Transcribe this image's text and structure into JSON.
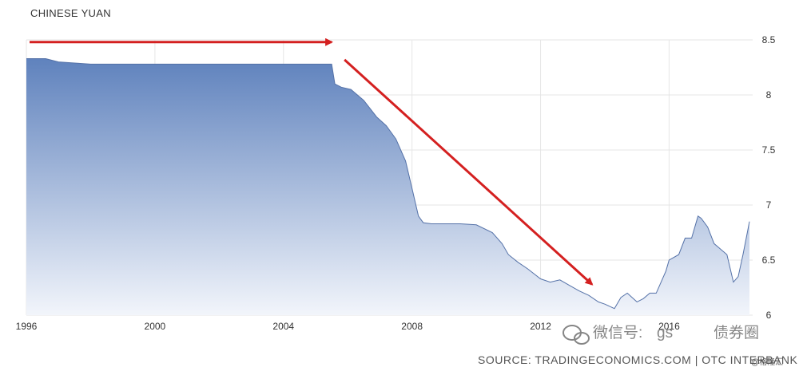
{
  "chart_data": {
    "type": "area",
    "title": "CHINESE YUAN",
    "xlabel": "",
    "ylabel": "",
    "xlim": [
      1996,
      2018.6
    ],
    "ylim": [
      6.0,
      8.5
    ],
    "x_ticks": [
      "1996",
      "2000",
      "2004",
      "2008",
      "2012",
      "2016"
    ],
    "y_ticks": [
      "8.5",
      "8",
      "7.5",
      "7",
      "6.5",
      "6"
    ],
    "grid": true,
    "legend": "none",
    "colors": {
      "fill_top": "#5f82bd",
      "fill_bottom": "#f2f5fb",
      "line": "#5572a8",
      "arrow": "#d42020"
    },
    "series": [
      {
        "x": [
          1996.0,
          1996.6,
          1997.0,
          1998.0,
          2000.0,
          2002.0,
          2004.0,
          2005.5,
          2005.6,
          2005.8,
          2006.1,
          2006.5,
          2006.9,
          2007.2,
          2007.5,
          2007.8,
          2008.0,
          2008.2,
          2008.35,
          2008.6,
          2009.0,
          2009.5,
          2010.0,
          2010.5,
          2010.8,
          2011.0,
          2011.3,
          2011.6,
          2012.0,
          2012.3,
          2012.6,
          2012.9,
          2013.2,
          2013.5,
          2013.8,
          2014.0,
          2014.3,
          2014.5,
          2014.7,
          2015.0,
          2015.2,
          2015.4,
          2015.6,
          2015.9,
          2016.0,
          2016.3,
          2016.5,
          2016.7,
          2016.9,
          2017.0,
          2017.2,
          2017.4,
          2017.6,
          2017.8,
          2018.0,
          2018.15,
          2018.3,
          2018.5
        ],
        "y": [
          8.33,
          8.33,
          8.3,
          8.28,
          8.28,
          8.28,
          8.28,
          8.28,
          8.1,
          8.07,
          8.05,
          7.95,
          7.8,
          7.72,
          7.6,
          7.4,
          7.15,
          6.9,
          6.84,
          6.83,
          6.83,
          6.83,
          6.82,
          6.75,
          6.65,
          6.55,
          6.48,
          6.42,
          6.33,
          6.3,
          6.32,
          6.27,
          6.22,
          6.18,
          6.12,
          6.1,
          6.06,
          6.16,
          6.2,
          6.12,
          6.15,
          6.2,
          6.2,
          6.4,
          6.5,
          6.55,
          6.7,
          6.7,
          6.9,
          6.88,
          6.8,
          6.65,
          6.6,
          6.55,
          6.3,
          6.35,
          6.55,
          6.85
        ]
      }
    ],
    "annotations": [
      {
        "type": "arrow",
        "from": [
          1996.1,
          8.48
        ],
        "to": [
          2005.5,
          8.48
        ]
      },
      {
        "type": "arrow",
        "from": [
          2005.9,
          8.32
        ],
        "to": [
          2013.6,
          6.28
        ]
      }
    ],
    "source": "SOURCE: TRADINGECONOMICS.COM | OTC INTERBANK"
  },
  "watermark": {
    "channel": "微信号:",
    "channel_id": "gs",
    "name": "债券圈",
    "credit": "@格隆汇"
  }
}
